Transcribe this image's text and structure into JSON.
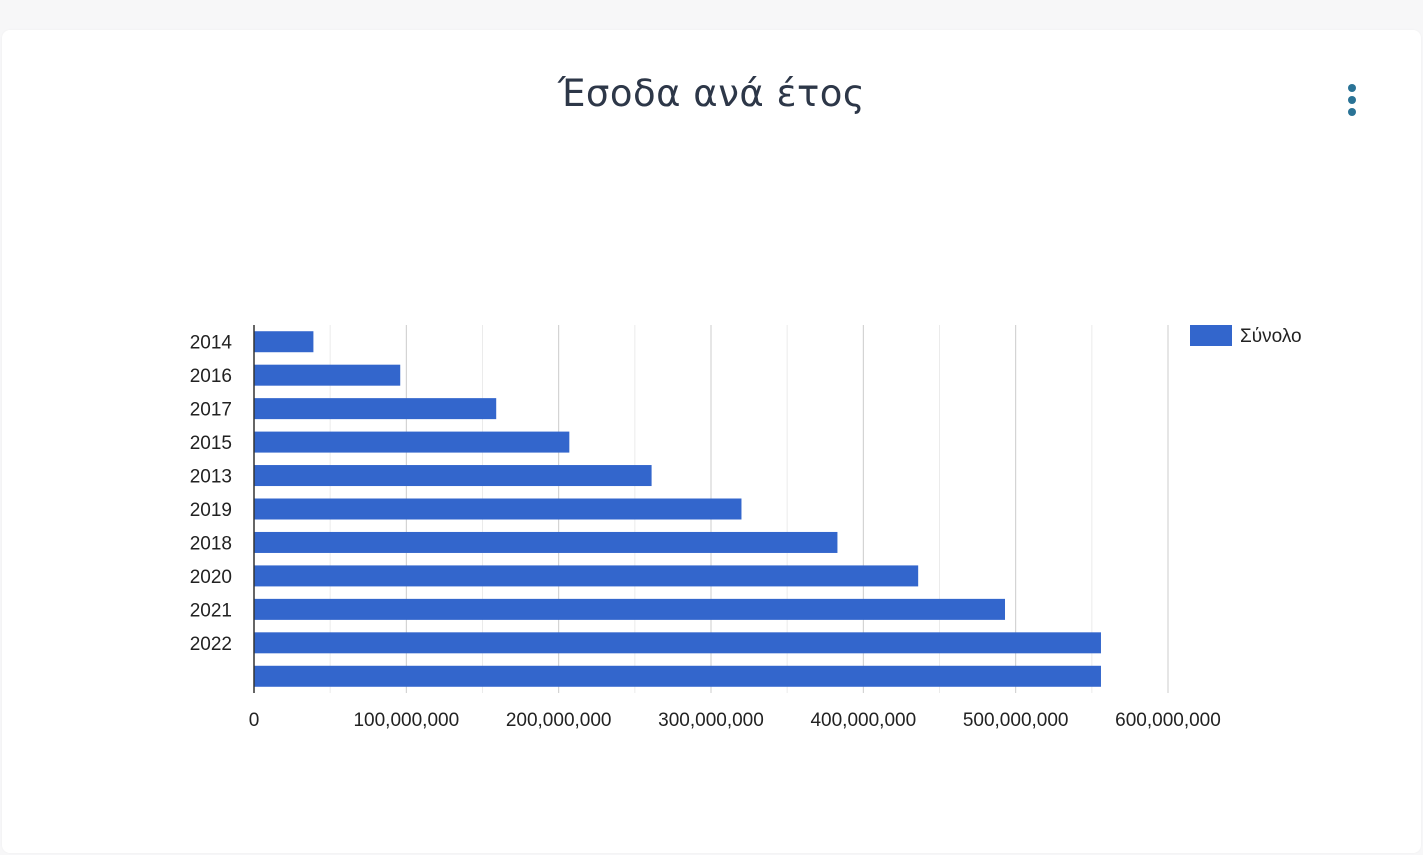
{
  "card": {
    "title": "Έσοδα ανά έτος",
    "menu_icon": "more-vertical-icon"
  },
  "colors": {
    "bar": "#3366cc",
    "menu": "#2a7396",
    "grid_major": "#cccccc",
    "grid_minor": "#ebebeb",
    "axis": "#333333"
  },
  "chart_data": {
    "type": "bar",
    "orientation": "horizontal",
    "title": "Έσοδα ανά έτος",
    "categories": [
      "2014",
      "2016",
      "2017",
      "2015",
      "2013",
      "2019",
      "2018",
      "2020",
      "2021",
      "2022",
      ""
    ],
    "series": [
      {
        "name": "Σύνολο",
        "values": [
          39000000,
          96000000,
          159000000,
          207000000,
          261000000,
          320000000,
          383000000,
          436000000,
          493000000,
          556000000,
          556000000
        ]
      }
    ],
    "xlim": [
      0,
      600000000
    ],
    "xticks": [
      0,
      100000000,
      200000000,
      300000000,
      400000000,
      500000000,
      600000000
    ],
    "xtick_labels": [
      "0",
      "100,000,000",
      "200,000,000",
      "300,000,000",
      "400,000,000",
      "500,000,000",
      "600,000,000"
    ],
    "grid": true,
    "legend": "right"
  }
}
